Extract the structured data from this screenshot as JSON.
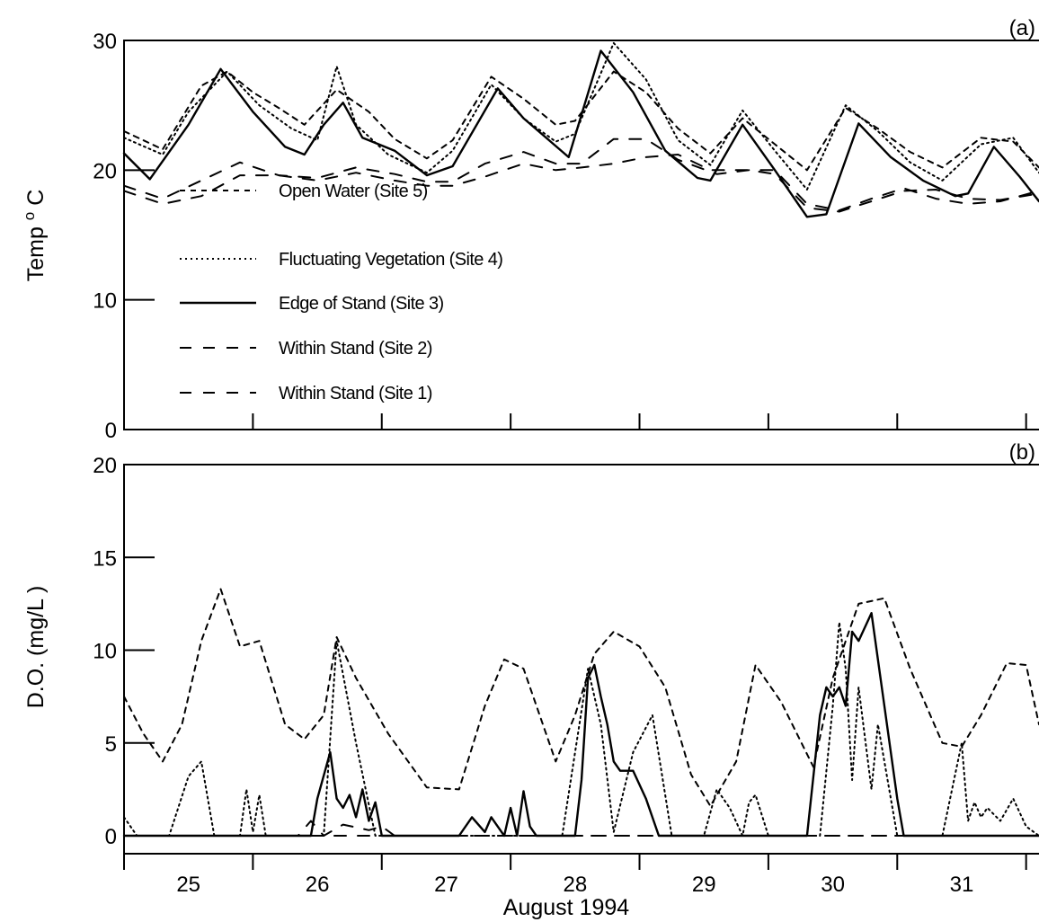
{
  "chart_data": [
    {
      "type": "line",
      "panel_label": "(a)",
      "ylabel": "Temp",
      "ylabel_sup": "o",
      "ylabel_unit": "C",
      "ylim": [
        0,
        30
      ],
      "yticks": [
        "0",
        "10",
        "20",
        "30"
      ],
      "xlim": [
        24.5,
        31.6
      ],
      "grid": false,
      "legend_position": "lower-left inside",
      "legend": [
        "Open Water (Site 5)",
        "Fluctuating Vegetation (Site 4)",
        "Edge of Stand (Site 3)",
        "Within Stand (Site 2)",
        "Within Stand (Site 1)"
      ],
      "series": [
        {
          "name": "Open Water (Site 5)",
          "style": "short-dash",
          "x": [
            24.5,
            24.8,
            25.1,
            25.3,
            25.5,
            25.7,
            25.9,
            26.15,
            26.4,
            26.6,
            26.85,
            27.05,
            27.35,
            27.6,
            27.85,
            28.0,
            28.3,
            28.55,
            28.8,
            29.05,
            29.3,
            29.55,
            29.8,
            30.1,
            30.35,
            30.6,
            30.85,
            31.15,
            31.4,
            31.6
          ],
          "y": [
            23,
            21.6,
            26.5,
            27.6,
            26,
            24.8,
            23.5,
            26.2,
            24.5,
            22.4,
            20.9,
            22.3,
            27.2,
            25.5,
            23.5,
            23.8,
            27.6,
            26,
            23.2,
            21.3,
            24,
            22,
            20,
            24.8,
            23.2,
            21.4,
            20.2,
            22.5,
            22.2,
            20.2
          ]
        },
        {
          "name": "Fluctuating Vegetation (Site 4)",
          "style": "dotted",
          "x": [
            24.5,
            24.8,
            25.0,
            25.3,
            25.55,
            25.8,
            26.0,
            26.15,
            26.3,
            26.55,
            26.85,
            27.05,
            27.35,
            27.6,
            27.85,
            28.0,
            28.3,
            28.55,
            28.8,
            29.05,
            29.3,
            29.55,
            29.8,
            30.1,
            30.35,
            30.6,
            30.85,
            31.15,
            31.4,
            31.6
          ],
          "y": [
            22.5,
            21.2,
            24.5,
            27.6,
            25,
            23.2,
            22.3,
            28,
            23.5,
            21.2,
            19.8,
            21.5,
            26.6,
            24,
            22.2,
            22.8,
            29.8,
            27,
            22.3,
            20.4,
            24.6,
            21.5,
            18.5,
            25,
            23,
            20.6,
            19.2,
            22,
            22.5,
            19.8
          ]
        },
        {
          "name": "Edge of Stand (Site 3)",
          "style": "solid",
          "x": [
            24.5,
            24.7,
            25.0,
            25.25,
            25.5,
            25.75,
            25.9,
            26.05,
            26.2,
            26.35,
            26.6,
            26.85,
            27.05,
            27.4,
            27.6,
            27.95,
            28.2,
            28.45,
            28.7,
            28.95,
            29.05,
            29.3,
            29.55,
            29.8,
            29.95,
            30.2,
            30.45,
            30.7,
            30.95,
            31.05,
            31.25,
            31.45,
            31.6
          ],
          "y": [
            21.3,
            19.3,
            23.5,
            27.8,
            24.5,
            21.8,
            21.2,
            23.5,
            25.2,
            22.5,
            21.5,
            19.6,
            20.3,
            26.3,
            24,
            21,
            29.2,
            26,
            21.5,
            19.4,
            19.2,
            23.5,
            20,
            16.4,
            16.6,
            23.6,
            21,
            19.2,
            18,
            18.2,
            21.8,
            19.5,
            17.6
          ]
        },
        {
          "name": "Within Stand (Site 2)",
          "style": "long-dash",
          "x": [
            24.5,
            24.8,
            25.1,
            25.4,
            25.7,
            26.0,
            26.3,
            26.6,
            26.85,
            27.05,
            27.3,
            27.6,
            27.85,
            28.05,
            28.3,
            28.55,
            28.8,
            29.1,
            29.35,
            29.55,
            29.8,
            30.05,
            30.3,
            30.55,
            30.8,
            31.05,
            31.3,
            31.6
          ],
          "y": [
            18.8,
            17.8,
            19.2,
            20.6,
            19.6,
            19.4,
            20.2,
            19.7,
            19.1,
            19.1,
            20.5,
            21.4,
            20.5,
            20.5,
            22.4,
            22.4,
            20.8,
            19.7,
            20,
            20,
            17.4,
            16.9,
            17.8,
            18.6,
            17.8,
            17.4,
            17.6,
            18.4
          ]
        },
        {
          "name": "Within Stand (Site 1)",
          "style": "long-dash",
          "x": [
            24.5,
            24.8,
            25.1,
            25.4,
            25.7,
            26.0,
            26.3,
            26.6,
            26.85,
            27.05,
            27.3,
            27.6,
            27.85,
            28.05,
            28.3,
            28.55,
            28.8,
            29.05,
            29.35,
            29.55,
            29.8,
            30.05,
            30.3,
            30.55,
            30.8,
            31.05,
            31.3,
            31.6
          ],
          "y": [
            18.4,
            17.4,
            18,
            19.6,
            19.6,
            19.2,
            19.8,
            19.2,
            18.8,
            18.8,
            19.5,
            20.5,
            20,
            20.2,
            20.5,
            21,
            21.2,
            20,
            20,
            19.7,
            17.1,
            16.8,
            17.6,
            18.4,
            18.5,
            17.8,
            17.7,
            18.2
          ]
        }
      ]
    },
    {
      "type": "line",
      "panel_label": "(b)",
      "ylabel": "D.O. (mg/L )",
      "ylim": [
        0,
        20
      ],
      "yticks": [
        "0",
        "5",
        "10",
        "15",
        "20"
      ],
      "xlim": [
        24.5,
        31.6
      ],
      "grid": false,
      "xticks": [
        "25",
        "26",
        "27",
        "28",
        "29",
        "30",
        "31"
      ],
      "xlabel": "August 1994",
      "series": [
        {
          "name": "Open Water (Site 5)",
          "style": "short-dash",
          "x": [
            24.5,
            24.65,
            24.8,
            24.95,
            25.1,
            25.25,
            25.4,
            25.55,
            25.75,
            25.9,
            26.05,
            26.15,
            26.3,
            26.55,
            26.85,
            27.1,
            27.3,
            27.45,
            27.6,
            27.85,
            28.0,
            28.15,
            28.3,
            28.5,
            28.7,
            28.9,
            29.05,
            29.25,
            29.4,
            29.6,
            29.85,
            30.0,
            30.2,
            30.4,
            30.6,
            30.85,
            31.0,
            31.15,
            31.35,
            31.5,
            31.6
          ],
          "y": [
            7.5,
            5.5,
            4,
            6,
            10.5,
            13.3,
            10.2,
            10.5,
            6,
            5.2,
            6.5,
            10.7,
            8.5,
            5.5,
            2.6,
            2.5,
            7,
            9.5,
            9,
            4,
            6.5,
            9.8,
            11,
            10.2,
            8,
            3.3,
            1.6,
            4,
            9.2,
            7.2,
            3.7,
            8.5,
            12.5,
            12.8,
            9,
            5,
            4.8,
            6.5,
            9.3,
            9.2,
            6
          ]
        },
        {
          "name": "Fluctuating Vegetation (Site 4)",
          "style": "dotted",
          "x": [
            24.5,
            24.55,
            24.6,
            24.85,
            25.0,
            25.1,
            25.2,
            25.4,
            25.45,
            25.5,
            25.55,
            25.6,
            26.05,
            26.15,
            26.3,
            26.45,
            26.6,
            26.9,
            27.9,
            28.1,
            28.2,
            28.3,
            28.45,
            28.6,
            28.75,
            28.9,
            29.0,
            29.1,
            29.2,
            29.3,
            29.35,
            29.4,
            29.5,
            29.9,
            30.0,
            30.05,
            30.1,
            30.15,
            30.2,
            30.3,
            30.35,
            30.5,
            30.6,
            30.75,
            30.85,
            31.0,
            31.05,
            31.1,
            31.15,
            31.2,
            31.3,
            31.4,
            31.5,
            31.6
          ],
          "y": [
            1,
            0.5,
            0,
            0,
            3.2,
            4,
            0,
            0,
            2.5,
            0.2,
            2.2,
            0,
            0,
            10.5,
            5,
            0,
            0,
            0,
            0,
            9,
            6,
            0.2,
            4.5,
            6.5,
            0,
            0,
            0,
            2.5,
            1.5,
            0,
            1.8,
            2.2,
            0,
            0,
            7,
            11.5,
            9,
            3,
            8,
            2.5,
            6,
            0,
            0,
            0,
            0,
            5,
            0.8,
            1.8,
            1,
            1.5,
            0.8,
            2,
            0.5,
            0
          ]
        },
        {
          "name": "Edge of Stand (Site 3)",
          "style": "solid",
          "x": [
            24.5,
            25.95,
            26.0,
            26.1,
            26.15,
            26.2,
            26.25,
            26.3,
            26.35,
            26.4,
            26.45,
            26.5,
            26.6,
            27.1,
            27.2,
            27.3,
            27.35,
            27.45,
            27.5,
            27.55,
            27.6,
            27.65,
            27.7,
            27.8,
            28.0,
            28.05,
            28.1,
            28.15,
            28.2,
            28.25,
            28.3,
            28.35,
            28.45,
            28.55,
            28.65,
            28.75,
            29.8,
            29.9,
            29.95,
            30.0,
            30.05,
            30.1,
            30.15,
            30.2,
            30.3,
            30.5,
            30.55,
            31.6
          ],
          "y": [
            0,
            0,
            2,
            4.5,
            2,
            1.5,
            2.2,
            1,
            2.5,
            0.8,
            1.8,
            0,
            0,
            0,
            1,
            0.2,
            1,
            0,
            1.5,
            0,
            2.4,
            0.5,
            0,
            0,
            0,
            3,
            8.5,
            9.2,
            7.5,
            6,
            4,
            3.5,
            3.5,
            2,
            0,
            0,
            0,
            6.5,
            8,
            7.5,
            8,
            7,
            11,
            10.5,
            12,
            2,
            0,
            0
          ]
        },
        {
          "name": "Within Stand (Site 2)",
          "style": "long-dash",
          "x": [
            24.5,
            25.85,
            25.95,
            26.05,
            26.2,
            26.4,
            26.5,
            26.6,
            31.6
          ],
          "y": [
            0,
            0,
            0.8,
            0,
            0.6,
            0.3,
            0.5,
            0,
            0
          ]
        },
        {
          "name": "Within Stand (Site 1)",
          "style": "long-dash",
          "x": [
            24.5,
            31.6
          ],
          "y": [
            0,
            0
          ]
        }
      ]
    }
  ]
}
